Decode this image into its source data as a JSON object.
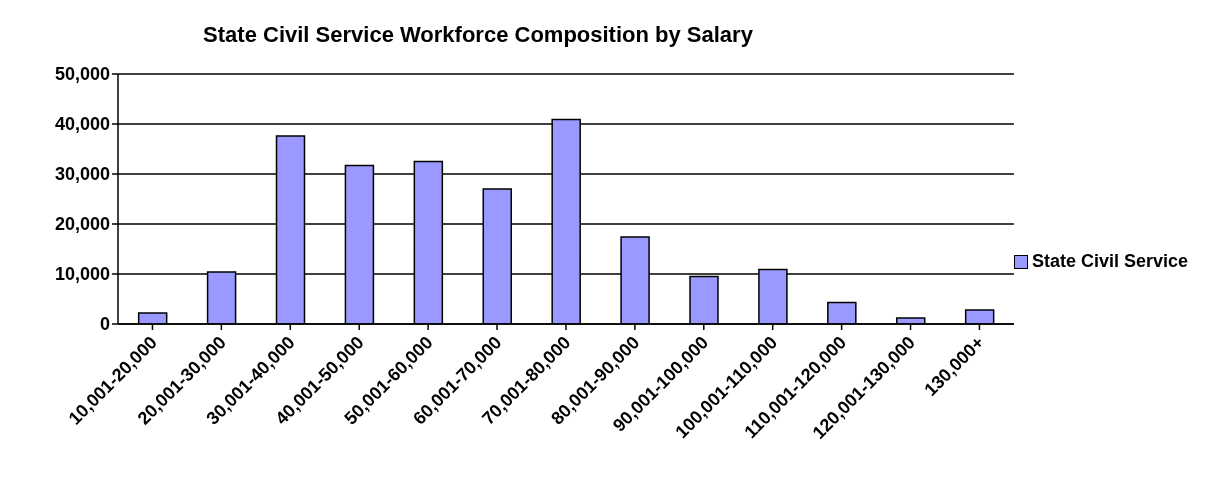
{
  "chart_data": {
    "type": "bar",
    "title": "State Civil Service Workforce Composition by Salary",
    "categories": [
      "10,001-20,000",
      "20,001-30,000",
      "30,001-40,000",
      "40,001-50,000",
      "50,001-60,000",
      "60,001-70,000",
      "70,001-80,000",
      "80,001-90,000",
      "90,001-100,000",
      "100,001-110,000",
      "110,001-120,000",
      "120,001-130,000",
      "130,000+"
    ],
    "series": [
      {
        "name": "State Civil Service",
        "color": "#9999ff",
        "values": [
          2200,
          10400,
          37600,
          31700,
          32500,
          27000,
          40900,
          17400,
          9500,
          10900,
          4300,
          1200,
          2800
        ]
      }
    ],
    "ylim": [
      0,
      50000
    ],
    "yticks": [
      0,
      {
        "value": 10000,
        "label": "10,000"
      },
      {
        "value": 20000,
        "label": "20,000"
      },
      {
        "value": 30000,
        "label": "30,000"
      },
      {
        "value": 40000,
        "label": "40,000"
      },
      {
        "value": 50000,
        "label": "50,000"
      }
    ],
    "grid": "y",
    "legend": "right"
  }
}
